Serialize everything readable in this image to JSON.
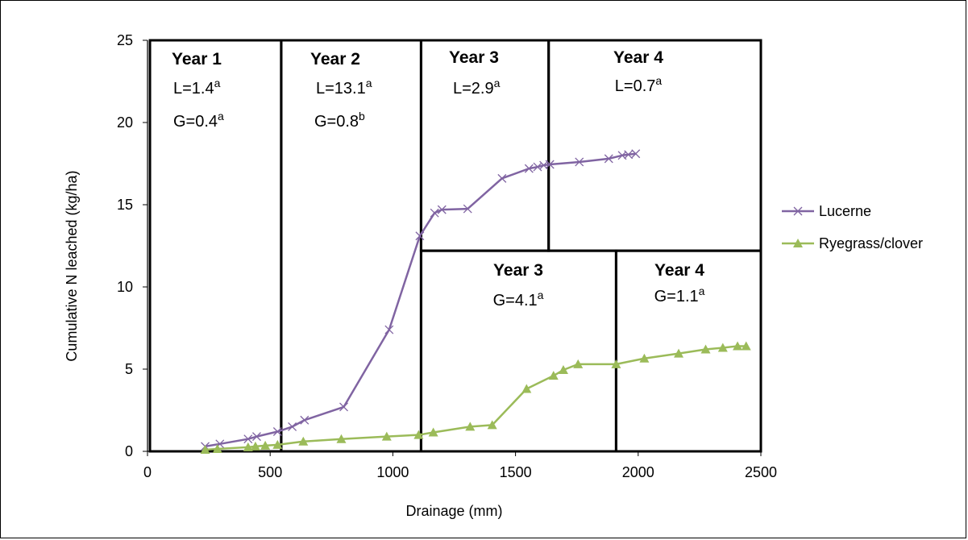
{
  "chart_data": {
    "type": "line",
    "title": "",
    "xlabel": "Drainage (mm)",
    "ylabel": "Cumulative N leached (kg/ha)",
    "xlim": [
      0,
      2500
    ],
    "ylim": [
      0,
      25
    ],
    "x_ticks": [
      "0",
      "500",
      "1000",
      "1500",
      "2000",
      "2500"
    ],
    "y_ticks": [
      "0",
      "5",
      "10",
      "15",
      "20",
      "25"
    ],
    "grid": false,
    "legend_position": "right",
    "series": [
      {
        "name": "Lucerne",
        "color": "#8064a2",
        "marker": "x",
        "points": [
          [
            235,
            0.3
          ],
          [
            295,
            0.45
          ],
          [
            410,
            0.75
          ],
          [
            445,
            0.9
          ],
          [
            530,
            1.2
          ],
          [
            590,
            1.5
          ],
          [
            640,
            1.9
          ],
          [
            800,
            2.7
          ],
          [
            985,
            7.4
          ],
          [
            1110,
            13.1
          ],
          [
            1170,
            14.5
          ],
          [
            1200,
            14.7
          ],
          [
            1305,
            14.75
          ],
          [
            1445,
            16.6
          ],
          [
            1555,
            17.2
          ],
          [
            1590,
            17.3
          ],
          [
            1615,
            17.4
          ],
          [
            1640,
            17.45
          ],
          [
            1760,
            17.6
          ],
          [
            1880,
            17.8
          ],
          [
            1935,
            18.0
          ],
          [
            1960,
            18.05
          ],
          [
            1990,
            18.1
          ]
        ]
      },
      {
        "name": "Ryegrass/clover",
        "color": "#9bbb59",
        "marker": "triangle",
        "points": [
          [
            235,
            0.1
          ],
          [
            285,
            0.15
          ],
          [
            410,
            0.25
          ],
          [
            440,
            0.3
          ],
          [
            480,
            0.35
          ],
          [
            530,
            0.4
          ],
          [
            635,
            0.6
          ],
          [
            790,
            0.75
          ],
          [
            975,
            0.9
          ],
          [
            1105,
            1.0
          ],
          [
            1165,
            1.15
          ],
          [
            1315,
            1.5
          ],
          [
            1405,
            1.6
          ],
          [
            1545,
            3.8
          ],
          [
            1655,
            4.6
          ],
          [
            1695,
            4.95
          ],
          [
            1755,
            5.3
          ],
          [
            1910,
            5.3
          ],
          [
            2025,
            5.65
          ],
          [
            2165,
            5.95
          ],
          [
            2275,
            6.2
          ],
          [
            2345,
            6.3
          ],
          [
            2405,
            6.4
          ],
          [
            2440,
            6.4
          ]
        ]
      }
    ],
    "annotations": [
      {
        "title": "Year 1",
        "lines": [
          {
            "base": "L=1.4",
            "sup": "a"
          },
          {
            "base": "G=0.4",
            "sup": "a"
          }
        ]
      },
      {
        "title": "Year 2",
        "lines": [
          {
            "base": "L=13.1",
            "sup": "a"
          },
          {
            "base": "G=0.8",
            "sup": "b"
          }
        ]
      },
      {
        "title": "Year 3",
        "lines": [
          {
            "base": "L=2.9",
            "sup": "a"
          }
        ]
      },
      {
        "title": "Year 4",
        "lines": [
          {
            "base": "L=0.7",
            "sup": "a"
          }
        ]
      },
      {
        "title": "Year 3",
        "lines": [
          {
            "base": "G=4.1",
            "sup": "a"
          }
        ]
      },
      {
        "title": "Year 4",
        "lines": [
          {
            "base": "G=1.1",
            "sup": "a"
          }
        ]
      }
    ]
  }
}
